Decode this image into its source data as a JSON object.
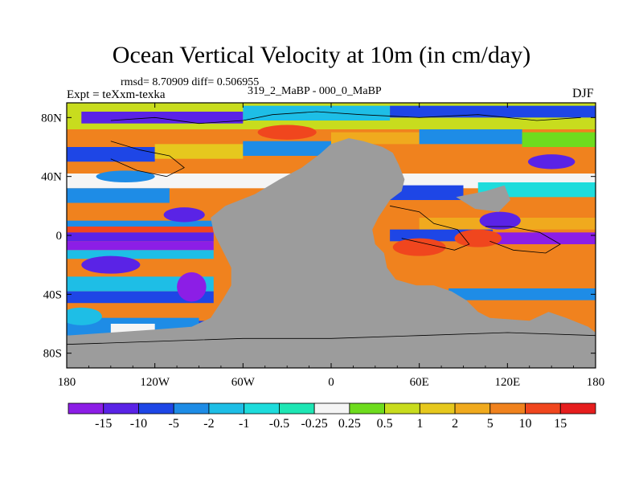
{
  "chart_data": {
    "type": "heatmap",
    "title": "Ocean Vertical Velocity at 10m (in cm/day)",
    "stats_line": "rmsd= 8.70909 diff= 0.506955",
    "left_label": "Expt = teXxm-texka",
    "center_label": "319_2_MaBP - 000_0_MaBP",
    "right_label": "DJF",
    "x_ticks": [
      "180",
      "120W",
      "60W",
      "0",
      "60E",
      "120E",
      "180"
    ],
    "x_tick_values": [
      -180,
      -120,
      -60,
      0,
      60,
      120,
      180
    ],
    "y_ticks": [
      "80N",
      "40N",
      "0",
      "40S",
      "80S"
    ],
    "y_tick_values": [
      80,
      40,
      0,
      -40,
      -80
    ],
    "xlim": [
      -180,
      180
    ],
    "ylim": [
      -90,
      90
    ],
    "land_color": "#9c9c9c",
    "colorbar": {
      "colors": [
        "#8c1ee6",
        "#5a23e6",
        "#1e46e6",
        "#1e8ce6",
        "#1ebee6",
        "#1edcdc",
        "#1ee6b4",
        "#f5f5f5",
        "#6edc1e",
        "#c8dc1e",
        "#e6c81e",
        "#f0aa1e",
        "#f0821e",
        "#f0461e",
        "#e61e1e"
      ],
      "labels": [
        "-15",
        "-10",
        "-5",
        "-2",
        "-1",
        "-0.5",
        "-0.25",
        "0.25",
        "0.5",
        "1",
        "2",
        "5",
        "10",
        "15"
      ]
    }
  }
}
